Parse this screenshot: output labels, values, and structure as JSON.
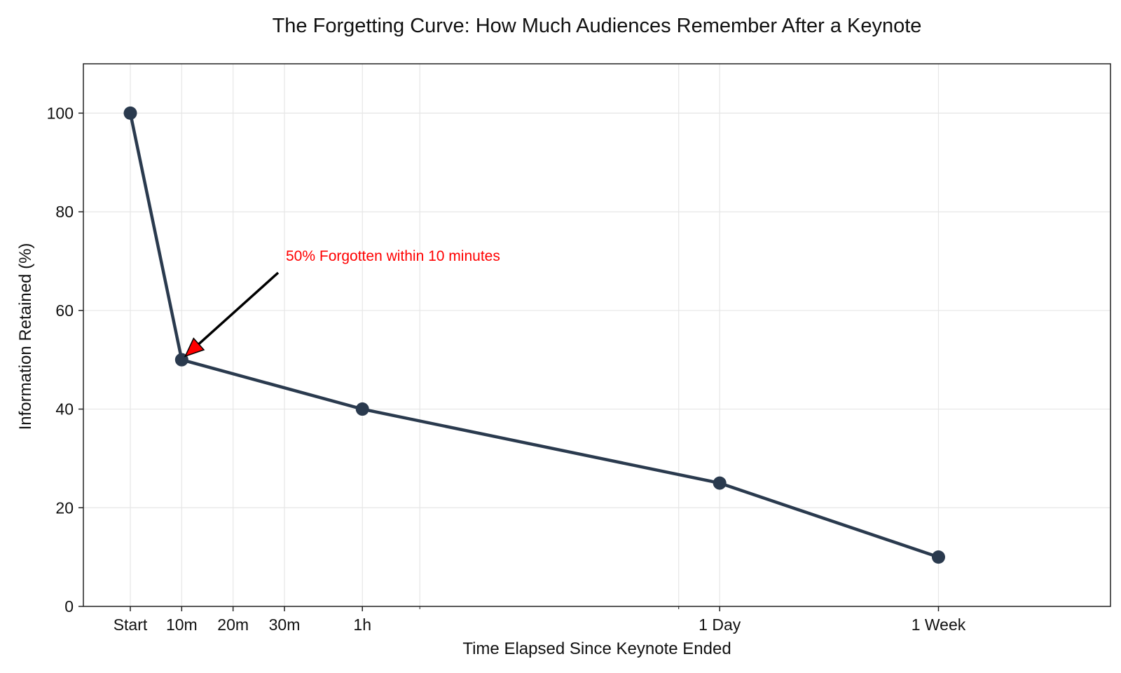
{
  "chart_data": {
    "type": "line",
    "title": "The Forgetting Curve: How Much Audiences Remember After a Keynote",
    "xlabel": "Time Elapsed Since Keynote Ended",
    "ylabel": "Information Retained (%)",
    "x_scale": "symlog",
    "x_tick_labels": [
      "Start",
      "10m",
      "20m",
      "30m",
      "1h",
      "1 Day",
      "1 Week"
    ],
    "ylim": [
      0,
      110
    ],
    "y_ticks": [
      0,
      20,
      40,
      60,
      80,
      100
    ],
    "grid": true,
    "series": [
      {
        "points": [
          {
            "x": "Start",
            "y": 100
          },
          {
            "x": "10m",
            "y": 50
          },
          {
            "x": "1h",
            "y": 40
          },
          {
            "x": "1 Day",
            "y": 25
          },
          {
            "x": "1 Week",
            "y": 10
          }
        ],
        "color": "#2a3a4e"
      }
    ],
    "annotations": [
      {
        "text": "50% Forgotten within 10 minutes",
        "target": {
          "x": "10m",
          "y": 50
        },
        "color": "#ff0000"
      }
    ]
  }
}
